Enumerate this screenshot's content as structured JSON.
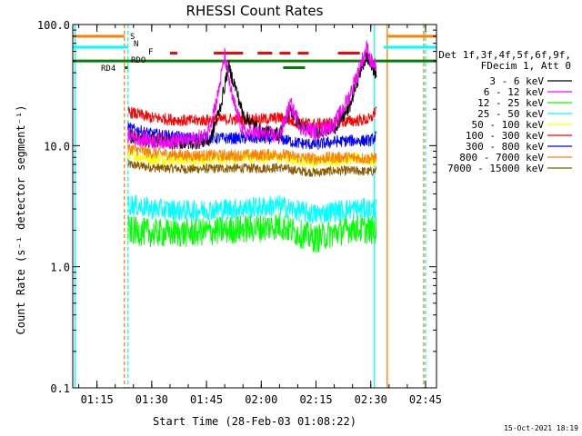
{
  "chart_data": {
    "type": "line",
    "title": "RHESSI Count Rates",
    "xlabel": "Start Time (28-Feb-03 01:08:22)",
    "ylabel": "Count Rate (s⁻¹ detector segment⁻¹)",
    "y_scale": "log",
    "ylim": [
      0.1,
      100.0
    ],
    "xlim": [
      "01:08:22",
      "02:48:00"
    ],
    "y_ticks": [
      "0.1",
      "1.0",
      "10.0",
      "100.0"
    ],
    "x_ticks": [
      "01:15",
      "01:30",
      "01:45",
      "02:00",
      "02:15",
      "02:30",
      "02:45"
    ],
    "data_start": "01:23:30",
    "data_end": "02:31:30",
    "legend": {
      "position": "right",
      "header": [
        "Det 1f,3f,4f,5f,6f,9f,",
        "FDecim 1, Att 0"
      ],
      "entries": [
        {
          "name": "3 - 6 keV",
          "color": "#000000"
        },
        {
          "name": "6 - 12 keV",
          "color": "#ff00ff"
        },
        {
          "name": "12 - 25 keV",
          "color": "#00ff00"
        },
        {
          "name": "25 - 50 keV",
          "color": "#00ffff"
        },
        {
          "name": "50 - 100 keV",
          "color": "#ffff00"
        },
        {
          "name": "100 - 300 keV",
          "color": "#ff0000"
        },
        {
          "name": "300 - 800 keV",
          "color": "#0000ff"
        },
        {
          "name": "800 - 7000 keV",
          "color": "#ff8000"
        },
        {
          "name": "7000 - 15000 keV",
          "color": "#8b5a00"
        }
      ]
    },
    "series": [
      {
        "name": "3 - 6 keV",
        "color": "#000000",
        "points": [
          [
            "01:23:30",
            12.0
          ],
          [
            "01:30",
            11.0
          ],
          [
            "01:40",
            10.5
          ],
          [
            "01:46",
            11.0
          ],
          [
            "01:49",
            22.0
          ],
          [
            "01:51",
            45.0
          ],
          [
            "01:53",
            30.0
          ],
          [
            "01:55",
            18.0
          ],
          [
            "02:00",
            13.0
          ],
          [
            "02:05",
            12.5
          ],
          [
            "02:08",
            20.0
          ],
          [
            "02:11",
            14.0
          ],
          [
            "02:15",
            13.0
          ],
          [
            "02:20",
            14.0
          ],
          [
            "02:24",
            20.0
          ],
          [
            "02:27",
            40.0
          ],
          [
            "02:29",
            55.0
          ],
          [
            "02:30",
            45.0
          ],
          [
            "02:31:30",
            40.0
          ]
        ]
      },
      {
        "name": "6 - 12 keV",
        "color": "#ff00ff",
        "points": [
          [
            "01:23:30",
            12.0
          ],
          [
            "01:30",
            11.0
          ],
          [
            "01:40",
            11.0
          ],
          [
            "01:45",
            12.0
          ],
          [
            "01:48",
            25.0
          ],
          [
            "01:50",
            55.0
          ],
          [
            "01:52",
            25.0
          ],
          [
            "01:55",
            13.0
          ],
          [
            "02:00",
            12.5
          ],
          [
            "02:05",
            12.0
          ],
          [
            "02:08",
            22.0
          ],
          [
            "02:11",
            14.0
          ],
          [
            "02:15",
            13.0
          ],
          [
            "02:20",
            15.0
          ],
          [
            "02:24",
            25.0
          ],
          [
            "02:27",
            45.0
          ],
          [
            "02:29",
            65.0
          ],
          [
            "02:30",
            50.0
          ],
          [
            "02:31:30",
            45.0
          ]
        ]
      },
      {
        "name": "12 - 25 keV",
        "color": "#00ff00",
        "points": [
          [
            "01:23:30",
            2.0
          ],
          [
            "01:30",
            1.9
          ],
          [
            "01:40",
            1.9
          ],
          [
            "01:50",
            2.0
          ],
          [
            "02:00",
            2.1
          ],
          [
            "02:05",
            2.2
          ],
          [
            "02:10",
            1.9
          ],
          [
            "02:15",
            1.7
          ],
          [
            "02:20",
            1.9
          ],
          [
            "02:25",
            2.1
          ],
          [
            "02:30",
            2.0
          ],
          [
            "02:31:30",
            2.0
          ]
        ]
      },
      {
        "name": "25 - 50 keV",
        "color": "#00ffff",
        "points": [
          [
            "01:23:30",
            3.3
          ],
          [
            "01:30",
            3.0
          ],
          [
            "01:40",
            2.9
          ],
          [
            "01:50",
            3.0
          ],
          [
            "02:00",
            3.1
          ],
          [
            "02:05",
            3.2
          ],
          [
            "02:10",
            2.9
          ],
          [
            "02:15",
            2.7
          ],
          [
            "02:20",
            2.9
          ],
          [
            "02:25",
            3.0
          ],
          [
            "02:30",
            3.0
          ],
          [
            "02:31:30",
            3.0
          ]
        ]
      },
      {
        "name": "50 - 100 keV",
        "color": "#ffff00",
        "points": [
          [
            "01:23:30",
            8.5
          ],
          [
            "01:30",
            7.8
          ],
          [
            "01:40",
            7.6
          ],
          [
            "01:50",
            7.8
          ],
          [
            "02:00",
            8.0
          ],
          [
            "02:05",
            8.0
          ],
          [
            "02:10",
            7.6
          ],
          [
            "02:15",
            7.4
          ],
          [
            "02:20",
            7.6
          ],
          [
            "02:25",
            7.8
          ],
          [
            "02:30",
            7.6
          ],
          [
            "02:31:30",
            7.6
          ]
        ]
      },
      {
        "name": "100 - 300 keV",
        "color": "#ff0000",
        "points": [
          [
            "01:23:30",
            19.0
          ],
          [
            "01:30",
            17.0
          ],
          [
            "01:40",
            16.0
          ],
          [
            "01:50",
            16.5
          ],
          [
            "02:00",
            16.5
          ],
          [
            "02:05",
            17.0
          ],
          [
            "02:10",
            15.5
          ],
          [
            "02:15",
            15.0
          ],
          [
            "02:20",
            15.5
          ],
          [
            "02:25",
            16.0
          ],
          [
            "02:30",
            16.5
          ],
          [
            "02:31:30",
            20.0
          ]
        ]
      },
      {
        "name": "300 - 800 keV",
        "color": "#0000ff",
        "points": [
          [
            "01:23:30",
            14.0
          ],
          [
            "01:30",
            12.5
          ],
          [
            "01:40",
            11.5
          ],
          [
            "01:50",
            11.5
          ],
          [
            "02:00",
            11.5
          ],
          [
            "02:05",
            11.5
          ],
          [
            "02:10",
            10.5
          ],
          [
            "02:15",
            10.2
          ],
          [
            "02:20",
            10.8
          ],
          [
            "02:25",
            11.0
          ],
          [
            "02:30",
            11.0
          ],
          [
            "02:31:30",
            12.0
          ]
        ]
      },
      {
        "name": "800 - 7000 keV",
        "color": "#ff8000",
        "points": [
          [
            "01:23:30",
            9.5
          ],
          [
            "01:30",
            8.7
          ],
          [
            "01:40",
            8.3
          ],
          [
            "01:50",
            8.3
          ],
          [
            "02:00",
            8.4
          ],
          [
            "02:05",
            8.5
          ],
          [
            "02:10",
            8.0
          ],
          [
            "02:15",
            7.8
          ],
          [
            "02:20",
            8.0
          ],
          [
            "02:25",
            8.0
          ],
          [
            "02:30",
            7.8
          ],
          [
            "02:31:30",
            8.0
          ]
        ]
      },
      {
        "name": "7000 - 15000 keV",
        "color": "#8b5a00",
        "points": [
          [
            "01:23:30",
            7.0
          ],
          [
            "01:30",
            6.6
          ],
          [
            "01:40",
            6.4
          ],
          [
            "01:50",
            6.5
          ],
          [
            "02:00",
            6.5
          ],
          [
            "02:05",
            6.6
          ],
          [
            "02:10",
            6.2
          ],
          [
            "02:15",
            6.0
          ],
          [
            "02:20",
            6.2
          ],
          [
            "02:25",
            6.2
          ],
          [
            "02:30",
            6.1
          ],
          [
            "02:31:30",
            6.2
          ]
        ]
      }
    ],
    "flag_bars": [
      {
        "label": "S",
        "color": "#ff8000",
        "y": 80,
        "segments": [
          [
            "01:08:22",
            "01:22:30"
          ],
          [
            "02:34:30",
            "02:48:00"
          ]
        ]
      },
      {
        "label": "N",
        "color": "#00ffff",
        "y": 65,
        "segments": [
          [
            "01:08:22",
            "01:23:30"
          ],
          [
            "02:33:30",
            "02:48:00"
          ]
        ]
      },
      {
        "label": "F",
        "color": "#ff0000",
        "y": 58,
        "segments": [
          [
            "01:35",
            "01:37"
          ],
          [
            "01:47",
            "01:55"
          ],
          [
            "01:59",
            "02:03"
          ],
          [
            "02:05",
            "02:08"
          ],
          [
            "02:10",
            "02:13"
          ],
          [
            "02:21",
            "02:27"
          ]
        ]
      },
      {
        "label": "RDO",
        "color": "#008000",
        "y": 50,
        "segments": [
          [
            "01:08:22",
            "02:48:00"
          ]
        ]
      },
      {
        "label": "RD4",
        "color": "#008000",
        "y": 44,
        "segments": [
          [
            "01:22:30",
            "01:23:30"
          ],
          [
            "02:06",
            "02:12"
          ]
        ]
      }
    ],
    "vertical_markers": [
      {
        "time": "01:09:00",
        "color": "#00ffff",
        "style": "solid"
      },
      {
        "time": "01:22:30",
        "color": "#ff8000",
        "style": "dashed"
      },
      {
        "time": "01:23:30",
        "color": "#00ffff",
        "style": "dashed"
      },
      {
        "time": "02:31:00",
        "color": "#00ffff",
        "style": "solid"
      },
      {
        "time": "02:34:30",
        "color": "#ff8000",
        "style": "solid"
      },
      {
        "time": "02:44:30",
        "color": "#ff8000",
        "style": "dashed"
      },
      {
        "time": "02:45:00",
        "color": "#00ffff",
        "style": "dashed"
      }
    ]
  },
  "footer_timestamp": "15-Oct-2021 18:19"
}
